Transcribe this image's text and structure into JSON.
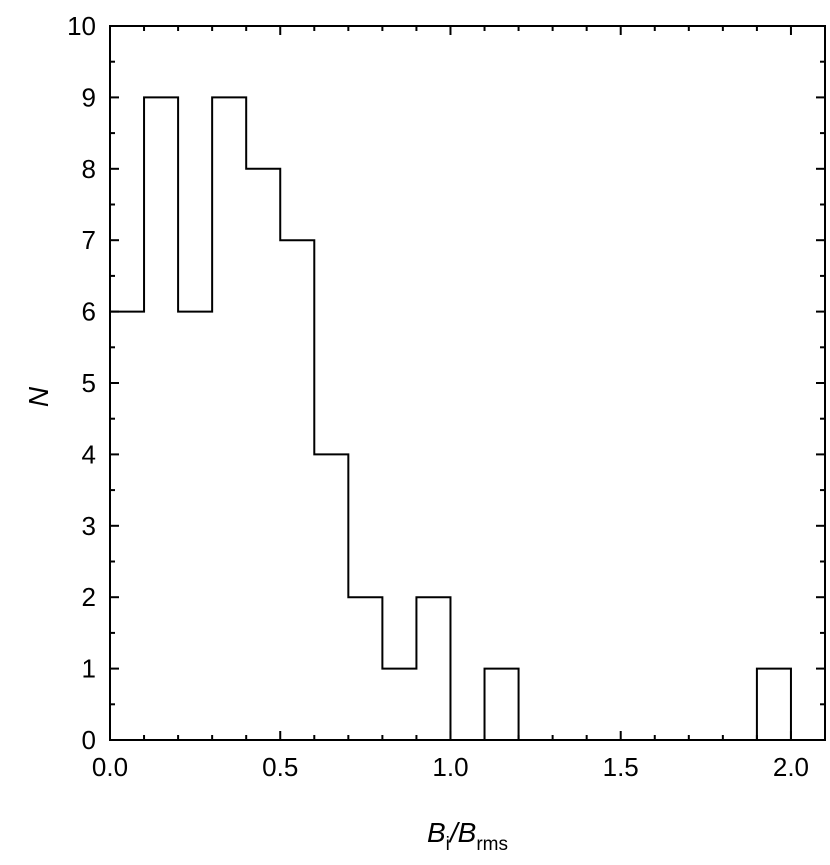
{
  "chart_data": {
    "type": "bar",
    "histogram": true,
    "bin_edges": [
      0.0,
      0.1,
      0.2,
      0.3,
      0.4,
      0.5,
      0.6,
      0.7,
      0.8,
      0.9,
      1.0,
      1.1,
      1.2,
      1.3,
      1.4,
      1.5,
      1.6,
      1.7,
      1.8,
      1.9,
      2.0
    ],
    "values": [
      6,
      9,
      6,
      9,
      8,
      7,
      4,
      2,
      1,
      2,
      0,
      1,
      0,
      0,
      0,
      0,
      0,
      0,
      0,
      1
    ],
    "xlim": [
      0.0,
      2.1
    ],
    "ylim": [
      0,
      10
    ],
    "x_ticks": [
      "0.0",
      "0.5",
      "1.0",
      "1.5",
      "2.0"
    ],
    "y_ticks": [
      "0",
      "1",
      "2",
      "3",
      "4",
      "5",
      "6",
      "7",
      "8",
      "9",
      "10"
    ],
    "xlabel": {
      "b": "B",
      "i": "i",
      "slash": "/",
      "rms": "rms"
    },
    "ylabel": "N",
    "grid": false,
    "colors": {
      "line": "#000000",
      "background": "#ffffff"
    }
  }
}
